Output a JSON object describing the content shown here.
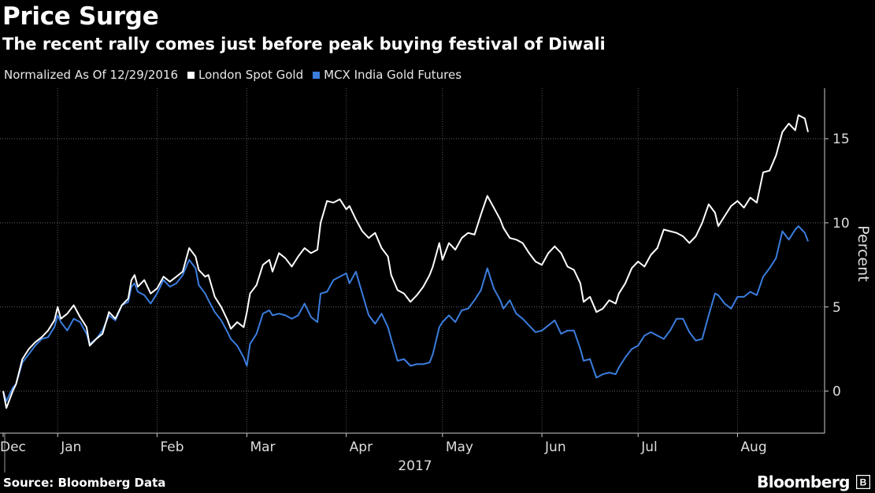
{
  "header": {
    "title": "Price Surge",
    "subtitle": "The recent rally comes just before peak buying festival of Diwali"
  },
  "legend": {
    "note": "Normalized As Of 12/29/2016",
    "series": [
      {
        "label": "London Spot Gold",
        "color": "#ffffff"
      },
      {
        "label": "MCX India Gold Futures",
        "color": "#3b7ddd"
      }
    ]
  },
  "footer": {
    "source": "Source: Bloomberg Data",
    "brand": "Bloomberg"
  },
  "chart_data": {
    "type": "line",
    "title": "Price Surge",
    "subtitle": "The recent rally comes just before peak buying festival of Diwali",
    "xlabel": "2017",
    "ylabel": "Percent",
    "ylim": [
      -2.5,
      18
    ],
    "yticks": [
      0,
      5,
      10,
      15
    ],
    "ytick_labels": [
      "0",
      "5",
      "10",
      "15"
    ],
    "grid": true,
    "legend_position": "top-left",
    "x_unit": "days since Dec 29, 2016",
    "xlim": [
      0,
      245
    ],
    "xticks": [
      {
        "label": "Dec",
        "x": 0
      },
      {
        "label": "Jan",
        "x": 17
      },
      {
        "label": "Feb",
        "x": 48
      },
      {
        "label": "Mar",
        "x": 76
      },
      {
        "label": "Apr",
        "x": 107
      },
      {
        "label": "May",
        "x": 137
      },
      {
        "label": "Jun",
        "x": 168
      },
      {
        "label": "Jul",
        "x": 198
      },
      {
        "label": "Aug",
        "x": 229
      }
    ],
    "year_label": "2017",
    "series": [
      {
        "name": "London Spot Gold",
        "color": "#ffffff",
        "points": [
          [
            0,
            0
          ],
          [
            1,
            -1
          ],
          [
            3,
            0
          ],
          [
            4,
            0.4
          ],
          [
            6,
            1.9
          ],
          [
            8,
            2.5
          ],
          [
            10,
            2.9
          ],
          [
            12,
            3.2
          ],
          [
            14,
            3.6
          ],
          [
            16,
            4.2
          ],
          [
            17,
            5
          ],
          [
            18,
            4.3
          ],
          [
            20,
            4.6
          ],
          [
            22,
            5.1
          ],
          [
            24,
            4.4
          ],
          [
            26,
            3.8
          ],
          [
            27,
            2.7
          ],
          [
            29,
            3.1
          ],
          [
            31,
            3.4
          ],
          [
            33,
            4.7
          ],
          [
            35,
            4.3
          ],
          [
            37,
            5.1
          ],
          [
            39,
            5.5
          ],
          [
            40,
            6.6
          ],
          [
            41,
            6.9
          ],
          [
            42,
            6.2
          ],
          [
            44,
            6.6
          ],
          [
            46,
            5.8
          ],
          [
            48,
            6.1
          ],
          [
            50,
            6.8
          ],
          [
            52,
            6.5
          ],
          [
            54,
            6.8
          ],
          [
            56,
            7.1
          ],
          [
            58,
            8.5
          ],
          [
            60,
            8
          ],
          [
            61,
            7.2
          ],
          [
            63,
            6.8
          ],
          [
            64,
            6.9
          ],
          [
            66,
            5.6
          ],
          [
            68,
            5
          ],
          [
            70,
            4.2
          ],
          [
            71,
            3.7
          ],
          [
            73,
            4.1
          ],
          [
            75,
            3.8
          ],
          [
            76,
            4.7
          ],
          [
            77,
            5.8
          ],
          [
            79,
            6.3
          ],
          [
            81,
            7.5
          ],
          [
            83,
            7.8
          ],
          [
            84,
            7.1
          ],
          [
            86,
            8.2
          ],
          [
            88,
            7.9
          ],
          [
            90,
            7.4
          ],
          [
            92,
            8
          ],
          [
            94,
            8.5
          ],
          [
            96,
            8.2
          ],
          [
            98,
            8.4
          ],
          [
            99,
            10
          ],
          [
            101,
            11.3
          ],
          [
            103,
            11.2
          ],
          [
            105,
            11.4
          ],
          [
            107,
            10.8
          ],
          [
            108,
            11
          ],
          [
            110,
            10.2
          ],
          [
            112,
            9.5
          ],
          [
            114,
            9.1
          ],
          [
            116,
            9.4
          ],
          [
            118,
            8.5
          ],
          [
            120,
            8
          ],
          [
            121,
            6.9
          ],
          [
            123,
            6
          ],
          [
            125,
            5.8
          ],
          [
            127,
            5.3
          ],
          [
            129,
            5.7
          ],
          [
            131,
            6.2
          ],
          [
            133,
            6.9
          ],
          [
            134,
            7.4
          ],
          [
            136,
            8.8
          ],
          [
            137,
            7.8
          ],
          [
            139,
            8.8
          ],
          [
            141,
            8.4
          ],
          [
            143,
            9.1
          ],
          [
            145,
            9.4
          ],
          [
            147,
            9.3
          ],
          [
            149,
            10.5
          ],
          [
            151,
            11.6
          ],
          [
            153,
            10.9
          ],
          [
            155,
            10.2
          ],
          [
            156,
            9.7
          ],
          [
            158,
            9.1
          ],
          [
            160,
            9
          ],
          [
            162,
            8.8
          ],
          [
            164,
            8.2
          ],
          [
            166,
            7.7
          ],
          [
            168,
            7.5
          ],
          [
            170,
            8.2
          ],
          [
            172,
            8.6
          ],
          [
            174,
            8.2
          ],
          [
            176,
            7.4
          ],
          [
            178,
            7.2
          ],
          [
            180,
            6.4
          ],
          [
            181,
            5.3
          ],
          [
            183,
            5.6
          ],
          [
            185,
            4.7
          ],
          [
            187,
            4.9
          ],
          [
            189,
            5.4
          ],
          [
            191,
            5.2
          ],
          [
            192,
            5.8
          ],
          [
            194,
            6.4
          ],
          [
            196,
            7.3
          ],
          [
            198,
            7.7
          ],
          [
            200,
            7.4
          ],
          [
            202,
            8.1
          ],
          [
            204,
            8.5
          ],
          [
            206,
            9.6
          ],
          [
            208,
            9.5
          ],
          [
            210,
            9.4
          ],
          [
            212,
            9.2
          ],
          [
            214,
            8.8
          ],
          [
            216,
            9.2
          ],
          [
            218,
            10
          ],
          [
            220,
            11.1
          ],
          [
            222,
            10.6
          ],
          [
            223,
            9.8
          ],
          [
            225,
            10.4
          ],
          [
            227,
            11
          ],
          [
            229,
            11.3
          ],
          [
            231,
            10.9
          ],
          [
            233,
            11.5
          ],
          [
            235,
            11.2
          ],
          [
            237,
            13
          ],
          [
            239,
            13.1
          ],
          [
            241,
            14
          ],
          [
            243,
            15.4
          ],
          [
            245,
            15.9
          ],
          [
            247,
            15.5
          ],
          [
            248,
            16.4
          ],
          [
            250,
            16.2
          ],
          [
            251,
            15.4
          ]
        ]
      },
      {
        "name": "MCX India Gold Futures",
        "color": "#3b7ddd",
        "points": [
          [
            0,
            0
          ],
          [
            1,
            -0.6
          ],
          [
            3,
            0.2
          ],
          [
            4,
            0.4
          ],
          [
            6,
            1.7
          ],
          [
            8,
            2.2
          ],
          [
            10,
            2.7
          ],
          [
            12,
            3.1
          ],
          [
            14,
            3.2
          ],
          [
            16,
            3.8
          ],
          [
            17,
            4.5
          ],
          [
            18,
            4.1
          ],
          [
            20,
            3.6
          ],
          [
            22,
            4.3
          ],
          [
            24,
            4.1
          ],
          [
            26,
            3.4
          ],
          [
            27,
            2.8
          ],
          [
            29,
            3.1
          ],
          [
            31,
            3.6
          ],
          [
            33,
            4.5
          ],
          [
            35,
            4.2
          ],
          [
            37,
            5.1
          ],
          [
            39,
            5.3
          ],
          [
            40,
            6.2
          ],
          [
            41,
            6.4
          ],
          [
            42,
            5.9
          ],
          [
            44,
            5.7
          ],
          [
            46,
            5.2
          ],
          [
            48,
            5.8
          ],
          [
            50,
            6.6
          ],
          [
            52,
            6.2
          ],
          [
            54,
            6.4
          ],
          [
            56,
            6.9
          ],
          [
            58,
            7.8
          ],
          [
            60,
            7.3
          ],
          [
            61,
            6.3
          ],
          [
            63,
            5.8
          ],
          [
            64,
            5.4
          ],
          [
            66,
            4.7
          ],
          [
            68,
            4.2
          ],
          [
            70,
            3.5
          ],
          [
            71,
            3.1
          ],
          [
            73,
            2.7
          ],
          [
            75,
            2.0
          ],
          [
            76,
            1.5
          ],
          [
            77,
            2.8
          ],
          [
            79,
            3.4
          ],
          [
            81,
            4.6
          ],
          [
            83,
            4.8
          ],
          [
            84,
            4.5
          ],
          [
            86,
            4.6
          ],
          [
            88,
            4.5
          ],
          [
            90,
            4.3
          ],
          [
            92,
            4.5
          ],
          [
            94,
            5.2
          ],
          [
            96,
            4.4
          ],
          [
            98,
            4.1
          ],
          [
            99,
            5.8
          ],
          [
            101,
            5.9
          ],
          [
            103,
            6.6
          ],
          [
            105,
            6.8
          ],
          [
            107,
            7.0
          ],
          [
            108,
            6.4
          ],
          [
            110,
            7.1
          ],
          [
            112,
            5.8
          ],
          [
            114,
            4.5
          ],
          [
            116,
            4.0
          ],
          [
            118,
            4.6
          ],
          [
            120,
            3.8
          ],
          [
            121,
            3.1
          ],
          [
            123,
            1.8
          ],
          [
            125,
            1.9
          ],
          [
            127,
            1.5
          ],
          [
            129,
            1.6
          ],
          [
            131,
            1.6
          ],
          [
            133,
            1.7
          ],
          [
            134,
            2.2
          ],
          [
            136,
            3.8
          ],
          [
            137,
            4.1
          ],
          [
            139,
            4.5
          ],
          [
            141,
            4.1
          ],
          [
            143,
            4.8
          ],
          [
            145,
            4.9
          ],
          [
            147,
            5.4
          ],
          [
            149,
            6.0
          ],
          [
            151,
            7.3
          ],
          [
            153,
            6.1
          ],
          [
            155,
            5.4
          ],
          [
            156,
            4.9
          ],
          [
            158,
            5.4
          ],
          [
            160,
            4.6
          ],
          [
            162,
            4.3
          ],
          [
            164,
            3.9
          ],
          [
            166,
            3.5
          ],
          [
            168,
            3.6
          ],
          [
            170,
            3.9
          ],
          [
            172,
            4.2
          ],
          [
            174,
            3.4
          ],
          [
            176,
            3.6
          ],
          [
            178,
            3.6
          ],
          [
            180,
            2.5
          ],
          [
            181,
            1.8
          ],
          [
            183,
            1.9
          ],
          [
            185,
            0.8
          ],
          [
            187,
            1.0
          ],
          [
            189,
            1.1
          ],
          [
            191,
            1.0
          ],
          [
            192,
            1.4
          ],
          [
            194,
            2.0
          ],
          [
            196,
            2.5
          ],
          [
            198,
            2.7
          ],
          [
            200,
            3.3
          ],
          [
            202,
            3.5
          ],
          [
            204,
            3.3
          ],
          [
            206,
            3.1
          ],
          [
            208,
            3.6
          ],
          [
            210,
            4.3
          ],
          [
            212,
            4.3
          ],
          [
            214,
            3.5
          ],
          [
            216,
            3.0
          ],
          [
            218,
            3.1
          ],
          [
            220,
            4.5
          ],
          [
            222,
            5.8
          ],
          [
            223,
            5.7
          ],
          [
            225,
            5.2
          ],
          [
            227,
            4.9
          ],
          [
            229,
            5.6
          ],
          [
            231,
            5.6
          ],
          [
            233,
            5.9
          ],
          [
            235,
            5.7
          ],
          [
            237,
            6.8
          ],
          [
            239,
            7.3
          ],
          [
            241,
            7.9
          ],
          [
            243,
            9.5
          ],
          [
            245,
            9.0
          ],
          [
            247,
            9.6
          ],
          [
            248,
            9.8
          ],
          [
            250,
            9.4
          ],
          [
            251,
            8.9
          ]
        ]
      }
    ]
  }
}
